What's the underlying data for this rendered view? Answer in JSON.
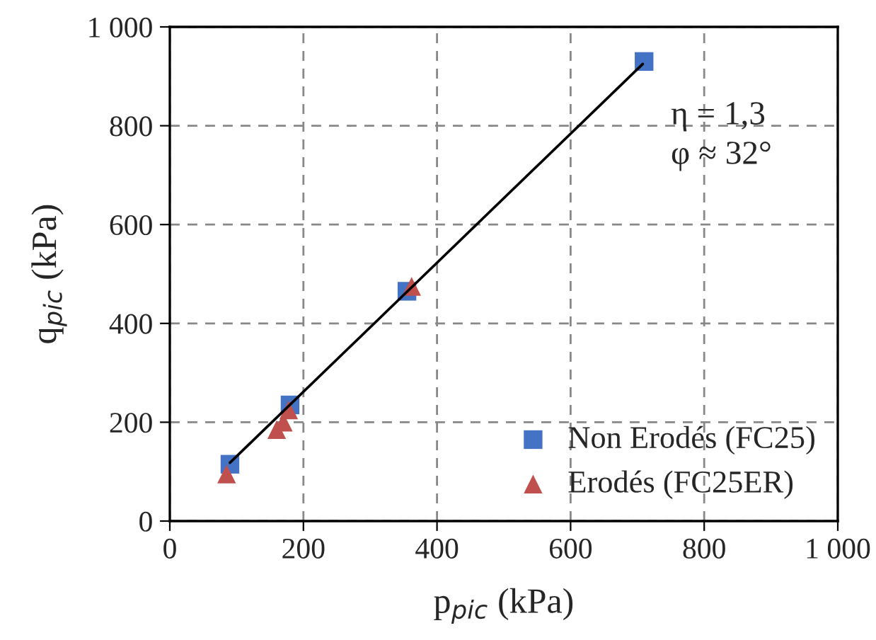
{
  "chart_data": {
    "type": "scatter",
    "xlabel": "p$_{pic}$ (kPa)",
    "ylabel": "q$_{pic}$ (kPa)",
    "series": [
      {
        "name": "Non Erodés (FC25)",
        "color": "#4472c4",
        "marker": "square",
        "x": [
          90,
          175,
          180,
          350,
          355,
          710
        ],
        "values": [
          115,
          null,
          235,
          null,
          465,
          930
        ]
      },
      {
        "name": "Erodés (FC25ER)",
        "color": "#c0504d",
        "marker": "triangle",
        "x": [
          85,
          160,
          170,
          175,
          178,
          362
        ],
        "values": [
          95,
          185,
          200,
          null,
          225,
          475
        ]
      },
      {
        "type": "line",
        "color": "#000000",
        "marker": "none",
        "line_style": "solid",
        "x": [
          90,
          708
        ],
        "values": [
          118,
          925
        ]
      }
    ],
    "annotations": [
      "η = 1,3\nφ ≈ 32°"
    ],
    "xlim": [
      0,
      1000
    ],
    "ylim": [
      0,
      1000
    ],
    "xticks": [
      0,
      200,
      400,
      600,
      800,
      {
        "value": 1000,
        "label": "1 000"
      }
    ],
    "yticks": [
      0,
      200,
      400,
      600,
      800,
      {
        "value": 1000,
        "label": "1 000"
      }
    ],
    "grid": true,
    "legend": "bottom right"
  }
}
